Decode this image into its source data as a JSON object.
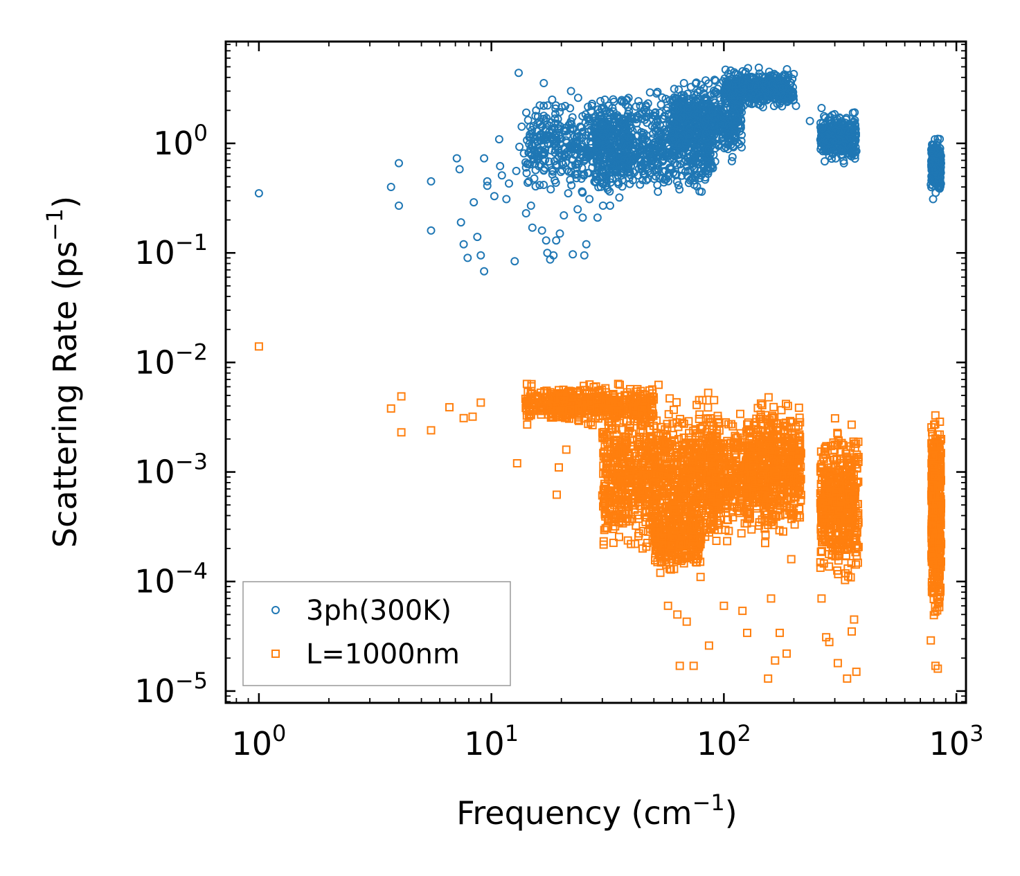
{
  "chart_data": {
    "type": "scatter",
    "x_scale": "log",
    "y_scale": "log",
    "xlabel": "Frequency (cm⁻¹)",
    "ylabel": "Scattering Rate (ps⁻¹)",
    "xlabel_main": "Frequency (cm",
    "ylabel_main": "Scattering Rate (ps",
    "label_exp": "−1",
    "label_close": ")",
    "xlim": [
      0.72,
      1100
    ],
    "ylim": [
      7.8e-06,
      8.5
    ],
    "x_ticks": [
      {
        "value": 1,
        "base": "10",
        "exp": "0"
      },
      {
        "value": 10,
        "base": "10",
        "exp": "1"
      },
      {
        "value": 100,
        "base": "10",
        "exp": "2"
      },
      {
        "value": 1000,
        "base": "10",
        "exp": "3"
      }
    ],
    "y_ticks": [
      {
        "value": 1,
        "base": "10",
        "exp": "0"
      },
      {
        "value": 0.1,
        "base": "10",
        "exp": "−1"
      },
      {
        "value": 0.01,
        "base": "10",
        "exp": "−2"
      },
      {
        "value": 0.001,
        "base": "10",
        "exp": "−3"
      },
      {
        "value": 0.0001,
        "base": "10",
        "exp": "−4"
      },
      {
        "value": 1e-05,
        "base": "10",
        "exp": "−5"
      }
    ],
    "legend_position": "lower-left",
    "series": [
      {
        "name": "3ph(300K)",
        "marker": "circle",
        "color": "#1f77b4",
        "points": [
          [
            1.0,
            0.35
          ],
          [
            3.7,
            0.4
          ],
          [
            4.0,
            0.66
          ],
          [
            4.0,
            0.27
          ],
          [
            5.5,
            0.45
          ],
          [
            5.5,
            0.16
          ],
          [
            7.1,
            0.73
          ],
          [
            7.3,
            0.58
          ],
          [
            7.4,
            0.19
          ],
          [
            7.6,
            0.12
          ],
          [
            7.9,
            0.09
          ],
          [
            8.4,
            0.29
          ],
          [
            8.7,
            0.14
          ],
          [
            9.0,
            0.095
          ],
          [
            9.3,
            0.068
          ],
          [
            9.3,
            0.73
          ],
          [
            9.6,
            0.45
          ],
          [
            9.6,
            0.41
          ],
          [
            10.3,
            0.33
          ],
          [
            10.8,
            1.09
          ],
          [
            10.9,
            0.62
          ],
          [
            11.1,
            0.51
          ],
          [
            11.6,
            0.31
          ],
          [
            11.9,
            0.43
          ],
          [
            12.6,
            0.084
          ],
          [
            12.8,
            0.56
          ],
          [
            13.1,
            4.4
          ],
          [
            13.2,
            0.93
          ],
          [
            13.5,
            1.42
          ],
          [
            13.8,
            0.81
          ],
          [
            14.1,
            0.23
          ],
          [
            14.5,
            0.45
          ],
          [
            14.8,
            0.27
          ],
          [
            15.0,
            0.17
          ],
          [
            15.5,
            0.57
          ],
          [
            16.0,
            0.62
          ],
          [
            16.5,
            0.16
          ],
          [
            16.8,
            3.55
          ],
          [
            17.2,
            0.13
          ],
          [
            17.4,
            0.1
          ],
          [
            17.9,
            0.087
          ],
          [
            18.3,
            0.52
          ],
          [
            18.5,
            0.095
          ],
          [
            19.0,
            0.13
          ],
          [
            19.7,
            0.15
          ],
          [
            20.5,
            0.22
          ],
          [
            21.4,
            0.35
          ],
          [
            22.0,
            3.0
          ],
          [
            22.4,
            0.097
          ],
          [
            23.5,
            0.25
          ],
          [
            24.7,
            0.21
          ],
          [
            25.1,
            0.095
          ],
          [
            25.6,
            0.12
          ],
          [
            26.4,
            0.31
          ],
          [
            27.0,
            2.2
          ],
          [
            28.6,
            0.21
          ],
          [
            30.2,
            0.27
          ],
          [
            32.4,
            0.27
          ],
          [
            35.5,
            0.32
          ],
          [
            38.9,
            2.6
          ],
          [
            43.6,
            0.42
          ],
          [
            49.0,
            0.62
          ],
          [
            55.0,
            0.55
          ],
          [
            61.7,
            0.66
          ],
          [
            68.6,
            1.0
          ],
          [
            74.1,
            0.72
          ],
          [
            81.3,
            1.45
          ],
          [
            91.2,
            3.8
          ],
          [
            102.3,
            2.3
          ],
          [
            120.0,
            3.7
          ],
          [
            141.3,
            4.9
          ],
          [
            162.2,
            3.5
          ],
          [
            181.0,
            2.7
          ],
          [
            204.2,
            2.2
          ],
          [
            234.4,
            1.6
          ],
          [
            263.0,
            2.1
          ],
          [
            302.0,
            1.3
          ],
          [
            331.1,
            0.85
          ],
          [
            358.9,
            1.9
          ],
          [
            371.5,
            0.85
          ],
          [
            776.2,
            0.42
          ],
          [
            794.3,
            0.31
          ],
          [
            812.8,
            0.68
          ],
          [
            831.8,
            1.1
          ],
          [
            851.1,
            0.9
          ]
        ],
        "bands": [
          {
            "x_range": [
              14,
              40
            ],
            "y_range": [
              0.3,
              3.3
            ],
            "count": 450
          },
          {
            "x_range": [
              28,
              90
            ],
            "y_range": [
              0.25,
              3.5
            ],
            "count": 700
          },
          {
            "x_range": [
              60,
              120
            ],
            "y_range": [
              0.6,
              4.6
            ],
            "count": 500
          },
          {
            "x_range": [
              100,
              200
            ],
            "y_range": [
              1.9,
              5.2
            ],
            "count": 400
          },
          {
            "x_range": [
              260,
              370
            ],
            "y_range": [
              0.6,
              2.2
            ],
            "count": 300
          },
          {
            "x_range": [
              780,
              860
            ],
            "y_range": [
              0.31,
              1.25
            ],
            "count": 220
          }
        ]
      },
      {
        "name": "L=1000nm",
        "marker": "square",
        "color": "#ff7f0e",
        "points": [
          [
            1.0,
            0.014
          ],
          [
            3.7,
            0.0038
          ],
          [
            4.1,
            0.0049
          ],
          [
            4.1,
            0.0023
          ],
          [
            5.5,
            0.0024
          ],
          [
            6.6,
            0.0039
          ],
          [
            7.6,
            0.0031
          ],
          [
            8.3,
            0.0032
          ],
          [
            9.0,
            0.0043
          ],
          [
            12.9,
            0.0012
          ],
          [
            19.1,
            0.00062
          ],
          [
            19.5,
            0.0011
          ],
          [
            21.0,
            0.0016
          ],
          [
            44.7,
            0.0002
          ],
          [
            47.8,
            0.00033
          ],
          [
            53.3,
            0.00012
          ],
          [
            57.5,
            6e-05
          ],
          [
            63.1,
            5e-05
          ],
          [
            64.6,
            1.7e-05
          ],
          [
            69.2,
            4.3e-05
          ],
          [
            74.1,
            1.7e-05
          ],
          [
            79.4,
            0.00011
          ],
          [
            86.3,
            2.6e-05
          ],
          [
            100.0,
            6e-05
          ],
          [
            120.2,
            5.4e-05
          ],
          [
            125.9,
            3.4e-05
          ],
          [
            154.9,
            1.3e-05
          ],
          [
            159.6,
            7e-05
          ],
          [
            166.0,
            1.9e-05
          ],
          [
            173.8,
            3.4e-05
          ],
          [
            186.2,
            2.2e-05
          ],
          [
            195.0,
            0.00016
          ],
          [
            263.0,
            7e-05
          ],
          [
            275.4,
            3.1e-05
          ],
          [
            284.1,
            2.8e-05
          ],
          [
            309.0,
            1.8e-05
          ],
          [
            338.8,
            1.3e-05
          ],
          [
            354.8,
            3.5e-05
          ],
          [
            363.1,
            4.5e-05
          ],
          [
            371.5,
            1.5e-05
          ],
          [
            776.2,
            2.9e-05
          ],
          [
            812.8,
            1.7e-05
          ],
          [
            831.8,
            1.6e-05
          ],
          [
            851.1,
            8e-05
          ]
        ],
        "bands": [
          {
            "x_range": [
              14,
              50
            ],
            "y_range": [
              0.0025,
              0.0068
            ],
            "count": 500
          },
          {
            "x_range": [
              30,
              95
            ],
            "y_range": [
              0.00013,
              0.0067
            ],
            "count": 1100
          },
          {
            "x_range": [
              50,
              80
            ],
            "y_range": [
              0.00011,
              0.0006
            ],
            "count": 300
          },
          {
            "x_range": [
              88,
              130
            ],
            "y_range": [
              0.0002,
              0.004
            ],
            "count": 300
          },
          {
            "x_range": [
              125,
              215
            ],
            "y_range": [
              0.0002,
              0.0059
            ],
            "count": 600
          },
          {
            "x_range": [
              260,
              380
            ],
            "y_range": [
              7e-05,
              0.0038
            ],
            "count": 500
          },
          {
            "x_range": [
              780,
              860
            ],
            "y_range": [
              3e-05,
              0.006
            ],
            "count": 450
          }
        ]
      }
    ]
  }
}
